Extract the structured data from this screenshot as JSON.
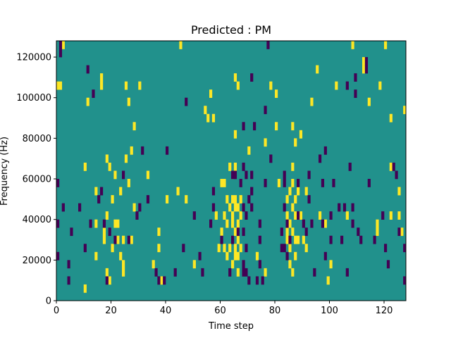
{
  "chart_data": {
    "type": "heatmap",
    "title": "Predicted : PM",
    "xlabel": "Time step",
    "ylabel": "Frequency (Hz)",
    "xlim": [
      0,
      128
    ],
    "ylim": [
      0,
      128000
    ],
    "x_ticks": [
      0,
      20,
      40,
      60,
      80,
      100,
      120
    ],
    "y_ticks": [
      0,
      20000,
      40000,
      60000,
      80000,
      100000,
      120000
    ],
    "x_tick_labels": [
      "0",
      "20",
      "40",
      "60",
      "80",
      "100",
      "120"
    ],
    "y_tick_labels": [
      "0",
      "20000",
      "40000",
      "60000",
      "80000",
      "100000",
      "120000"
    ],
    "n_rows": 32,
    "row_height_hz": 4000,
    "colors": {
      "background": "#21918c",
      "high": "#fde725",
      "low": "#440154"
    },
    "high_cells": [
      [
        0,
        104000
      ],
      [
        1,
        104000
      ],
      [
        2,
        124000
      ],
      [
        10,
        4000
      ],
      [
        10,
        64000
      ],
      [
        11,
        96000
      ],
      [
        14,
        20000
      ],
      [
        14,
        52000
      ],
      [
        14,
        36000
      ],
      [
        16,
        104000
      ],
      [
        16,
        108000
      ],
      [
        17,
        28000
      ],
      [
        17,
        32000
      ],
      [
        18,
        68000
      ],
      [
        18,
        40000
      ],
      [
        18,
        12000
      ],
      [
        19,
        64000
      ],
      [
        19,
        8000
      ],
      [
        20,
        48000
      ],
      [
        20,
        24000
      ],
      [
        21,
        60000
      ],
      [
        21,
        36000
      ],
      [
        22,
        28000
      ],
      [
        22,
        36000
      ],
      [
        23,
        52000
      ],
      [
        23,
        20000
      ],
      [
        24,
        28000
      ],
      [
        24,
        12000
      ],
      [
        24,
        16000
      ],
      [
        25,
        104000
      ],
      [
        25,
        68000
      ],
      [
        26,
        56000
      ],
      [
        26,
        96000
      ],
      [
        27,
        72000
      ],
      [
        27,
        28000
      ],
      [
        28,
        84000
      ],
      [
        28,
        44000
      ],
      [
        30,
        104000
      ],
      [
        33,
        60000
      ],
      [
        35,
        16000
      ],
      [
        37,
        24000
      ],
      [
        37,
        32000
      ],
      [
        38,
        8000
      ],
      [
        40,
        48000
      ],
      [
        44,
        52000
      ],
      [
        45,
        124000
      ],
      [
        47,
        48000
      ],
      [
        50,
        16000
      ],
      [
        54,
        92000
      ],
      [
        55,
        88000
      ],
      [
        56,
        100000
      ],
      [
        57,
        88000
      ],
      [
        58,
        40000
      ],
      [
        59,
        24000
      ],
      [
        60,
        56000
      ],
      [
        60,
        32000
      ],
      [
        61,
        40000
      ],
      [
        61,
        56000
      ],
      [
        61,
        24000
      ],
      [
        62,
        48000
      ],
      [
        62,
        36000
      ],
      [
        62,
        20000
      ],
      [
        63,
        64000
      ],
      [
        63,
        44000
      ],
      [
        63,
        24000
      ],
      [
        64,
        48000
      ],
      [
        64,
        40000
      ],
      [
        64,
        36000
      ],
      [
        64,
        16000
      ],
      [
        64,
        60000
      ],
      [
        65,
        48000
      ],
      [
        65,
        44000
      ],
      [
        65,
        32000
      ],
      [
        65,
        24000
      ],
      [
        65,
        20000
      ],
      [
        65,
        80000
      ],
      [
        65,
        108000
      ],
      [
        65,
        64000
      ],
      [
        66,
        44000
      ],
      [
        66,
        36000
      ],
      [
        66,
        28000
      ],
      [
        66,
        20000
      ],
      [
        66,
        104000
      ],
      [
        66,
        12000
      ],
      [
        67,
        48000
      ],
      [
        67,
        40000
      ],
      [
        67,
        24000
      ],
      [
        70,
        72000
      ],
      [
        73,
        20000
      ],
      [
        76,
        76000
      ],
      [
        76,
        12000
      ],
      [
        78,
        104000
      ],
      [
        80,
        84000
      ],
      [
        80,
        100000
      ],
      [
        81,
        56000
      ],
      [
        84,
        48000
      ],
      [
        84,
        40000
      ],
      [
        84,
        32000
      ],
      [
        84,
        28000
      ],
      [
        85,
        52000
      ],
      [
        85,
        36000
      ],
      [
        85,
        24000
      ],
      [
        85,
        16000
      ],
      [
        86,
        56000
      ],
      [
        86,
        44000
      ],
      [
        86,
        32000
      ],
      [
        86,
        64000
      ],
      [
        86,
        84000
      ],
      [
        86,
        12000
      ],
      [
        87,
        48000
      ],
      [
        87,
        40000
      ],
      [
        87,
        28000
      ],
      [
        87,
        20000
      ],
      [
        87,
        76000
      ],
      [
        88,
        52000
      ],
      [
        88,
        28000
      ],
      [
        89,
        80000
      ],
      [
        89,
        40000
      ],
      [
        90,
        28000
      ],
      [
        91,
        52000
      ],
      [
        91,
        24000
      ],
      [
        93,
        96000
      ],
      [
        95,
        112000
      ],
      [
        96,
        40000
      ],
      [
        98,
        36000
      ],
      [
        99,
        8000
      ],
      [
        100,
        16000
      ],
      [
        102,
        104000
      ],
      [
        106,
        40000
      ],
      [
        108,
        124000
      ],
      [
        112,
        112000
      ],
      [
        112,
        116000
      ],
      [
        114,
        96000
      ],
      [
        117,
        32000
      ],
      [
        117,
        36000
      ],
      [
        118,
        104000
      ],
      [
        120,
        124000
      ],
      [
        122,
        64000
      ],
      [
        122,
        40000
      ],
      [
        122,
        88000
      ],
      [
        125,
        40000
      ],
      [
        125,
        52000
      ],
      [
        126,
        32000
      ],
      [
        127,
        92000
      ]
    ],
    "low_cells": [
      [
        0,
        36000
      ],
      [
        0,
        56000
      ],
      [
        0,
        20000
      ],
      [
        1,
        124000
      ],
      [
        1,
        120000
      ],
      [
        2,
        44000
      ],
      [
        4,
        8000
      ],
      [
        4,
        16000
      ],
      [
        5,
        32000
      ],
      [
        8,
        44000
      ],
      [
        10,
        24000
      ],
      [
        11,
        112000
      ],
      [
        12,
        36000
      ],
      [
        13,
        100000
      ],
      [
        15,
        48000
      ],
      [
        16,
        52000
      ],
      [
        17,
        36000
      ],
      [
        18,
        8000
      ],
      [
        19,
        32000
      ],
      [
        21,
        28000
      ],
      [
        24,
        60000
      ],
      [
        26,
        28000
      ],
      [
        29,
        40000
      ],
      [
        30,
        44000
      ],
      [
        31,
        72000
      ],
      [
        33,
        48000
      ],
      [
        36,
        12000
      ],
      [
        37,
        8000
      ],
      [
        39,
        8000
      ],
      [
        40,
        72000
      ],
      [
        43,
        12000
      ],
      [
        46,
        24000
      ],
      [
        47,
        96000
      ],
      [
        50,
        40000
      ],
      [
        52,
        20000
      ],
      [
        53,
        12000
      ],
      [
        56,
        36000
      ],
      [
        57,
        44000
      ],
      [
        57,
        52000
      ],
      [
        60,
        28000
      ],
      [
        63,
        12000
      ],
      [
        64,
        60000
      ],
      [
        64,
        28000
      ],
      [
        65,
        60000
      ],
      [
        66,
        32000
      ],
      [
        67,
        56000
      ],
      [
        68,
        44000
      ],
      [
        68,
        64000
      ],
      [
        68,
        84000
      ],
      [
        68,
        16000
      ],
      [
        68,
        32000
      ],
      [
        68,
        12000
      ],
      [
        69,
        60000
      ],
      [
        69,
        24000
      ],
      [
        69,
        12000
      ],
      [
        69,
        40000
      ],
      [
        70,
        48000
      ],
      [
        70,
        8000
      ],
      [
        71,
        52000
      ],
      [
        71,
        108000
      ],
      [
        71,
        44000
      ],
      [
        71,
        60000
      ],
      [
        72,
        84000
      ],
      [
        73,
        8000
      ],
      [
        74,
        16000
      ],
      [
        74,
        36000
      ],
      [
        74,
        28000
      ],
      [
        75,
        8000
      ],
      [
        76,
        92000
      ],
      [
        76,
        56000
      ],
      [
        77,
        124000
      ],
      [
        78,
        68000
      ],
      [
        82,
        32000
      ],
      [
        82,
        24000
      ],
      [
        83,
        24000
      ],
      [
        83,
        44000
      ],
      [
        83,
        56000
      ],
      [
        83,
        60000
      ],
      [
        84,
        36000
      ],
      [
        84,
        20000
      ],
      [
        85,
        28000
      ],
      [
        88,
        40000
      ],
      [
        88,
        56000
      ],
      [
        90,
        36000
      ],
      [
        91,
        32000
      ],
      [
        92,
        48000
      ],
      [
        92,
        60000
      ],
      [
        93,
        36000
      ],
      [
        94,
        12000
      ],
      [
        96,
        68000
      ],
      [
        97,
        36000
      ],
      [
        97,
        56000
      ],
      [
        98,
        72000
      ],
      [
        98,
        20000
      ],
      [
        100,
        40000
      ],
      [
        100,
        28000
      ],
      [
        101,
        56000
      ],
      [
        103,
        44000
      ],
      [
        104,
        28000
      ],
      [
        105,
        44000
      ],
      [
        106,
        12000
      ],
      [
        106,
        104000
      ],
      [
        107,
        64000
      ],
      [
        108,
        44000
      ],
      [
        108,
        36000
      ],
      [
        109,
        100000
      ],
      [
        109,
        108000
      ],
      [
        110,
        32000
      ],
      [
        111,
        28000
      ],
      [
        113,
        112000
      ],
      [
        113,
        116000
      ],
      [
        114,
        56000
      ],
      [
        116,
        28000
      ],
      [
        119,
        40000
      ],
      [
        120,
        24000
      ],
      [
        121,
        16000
      ],
      [
        123,
        64000
      ],
      [
        124,
        60000
      ],
      [
        125,
        32000
      ],
      [
        127,
        8000
      ],
      [
        127,
        24000
      ]
    ]
  }
}
